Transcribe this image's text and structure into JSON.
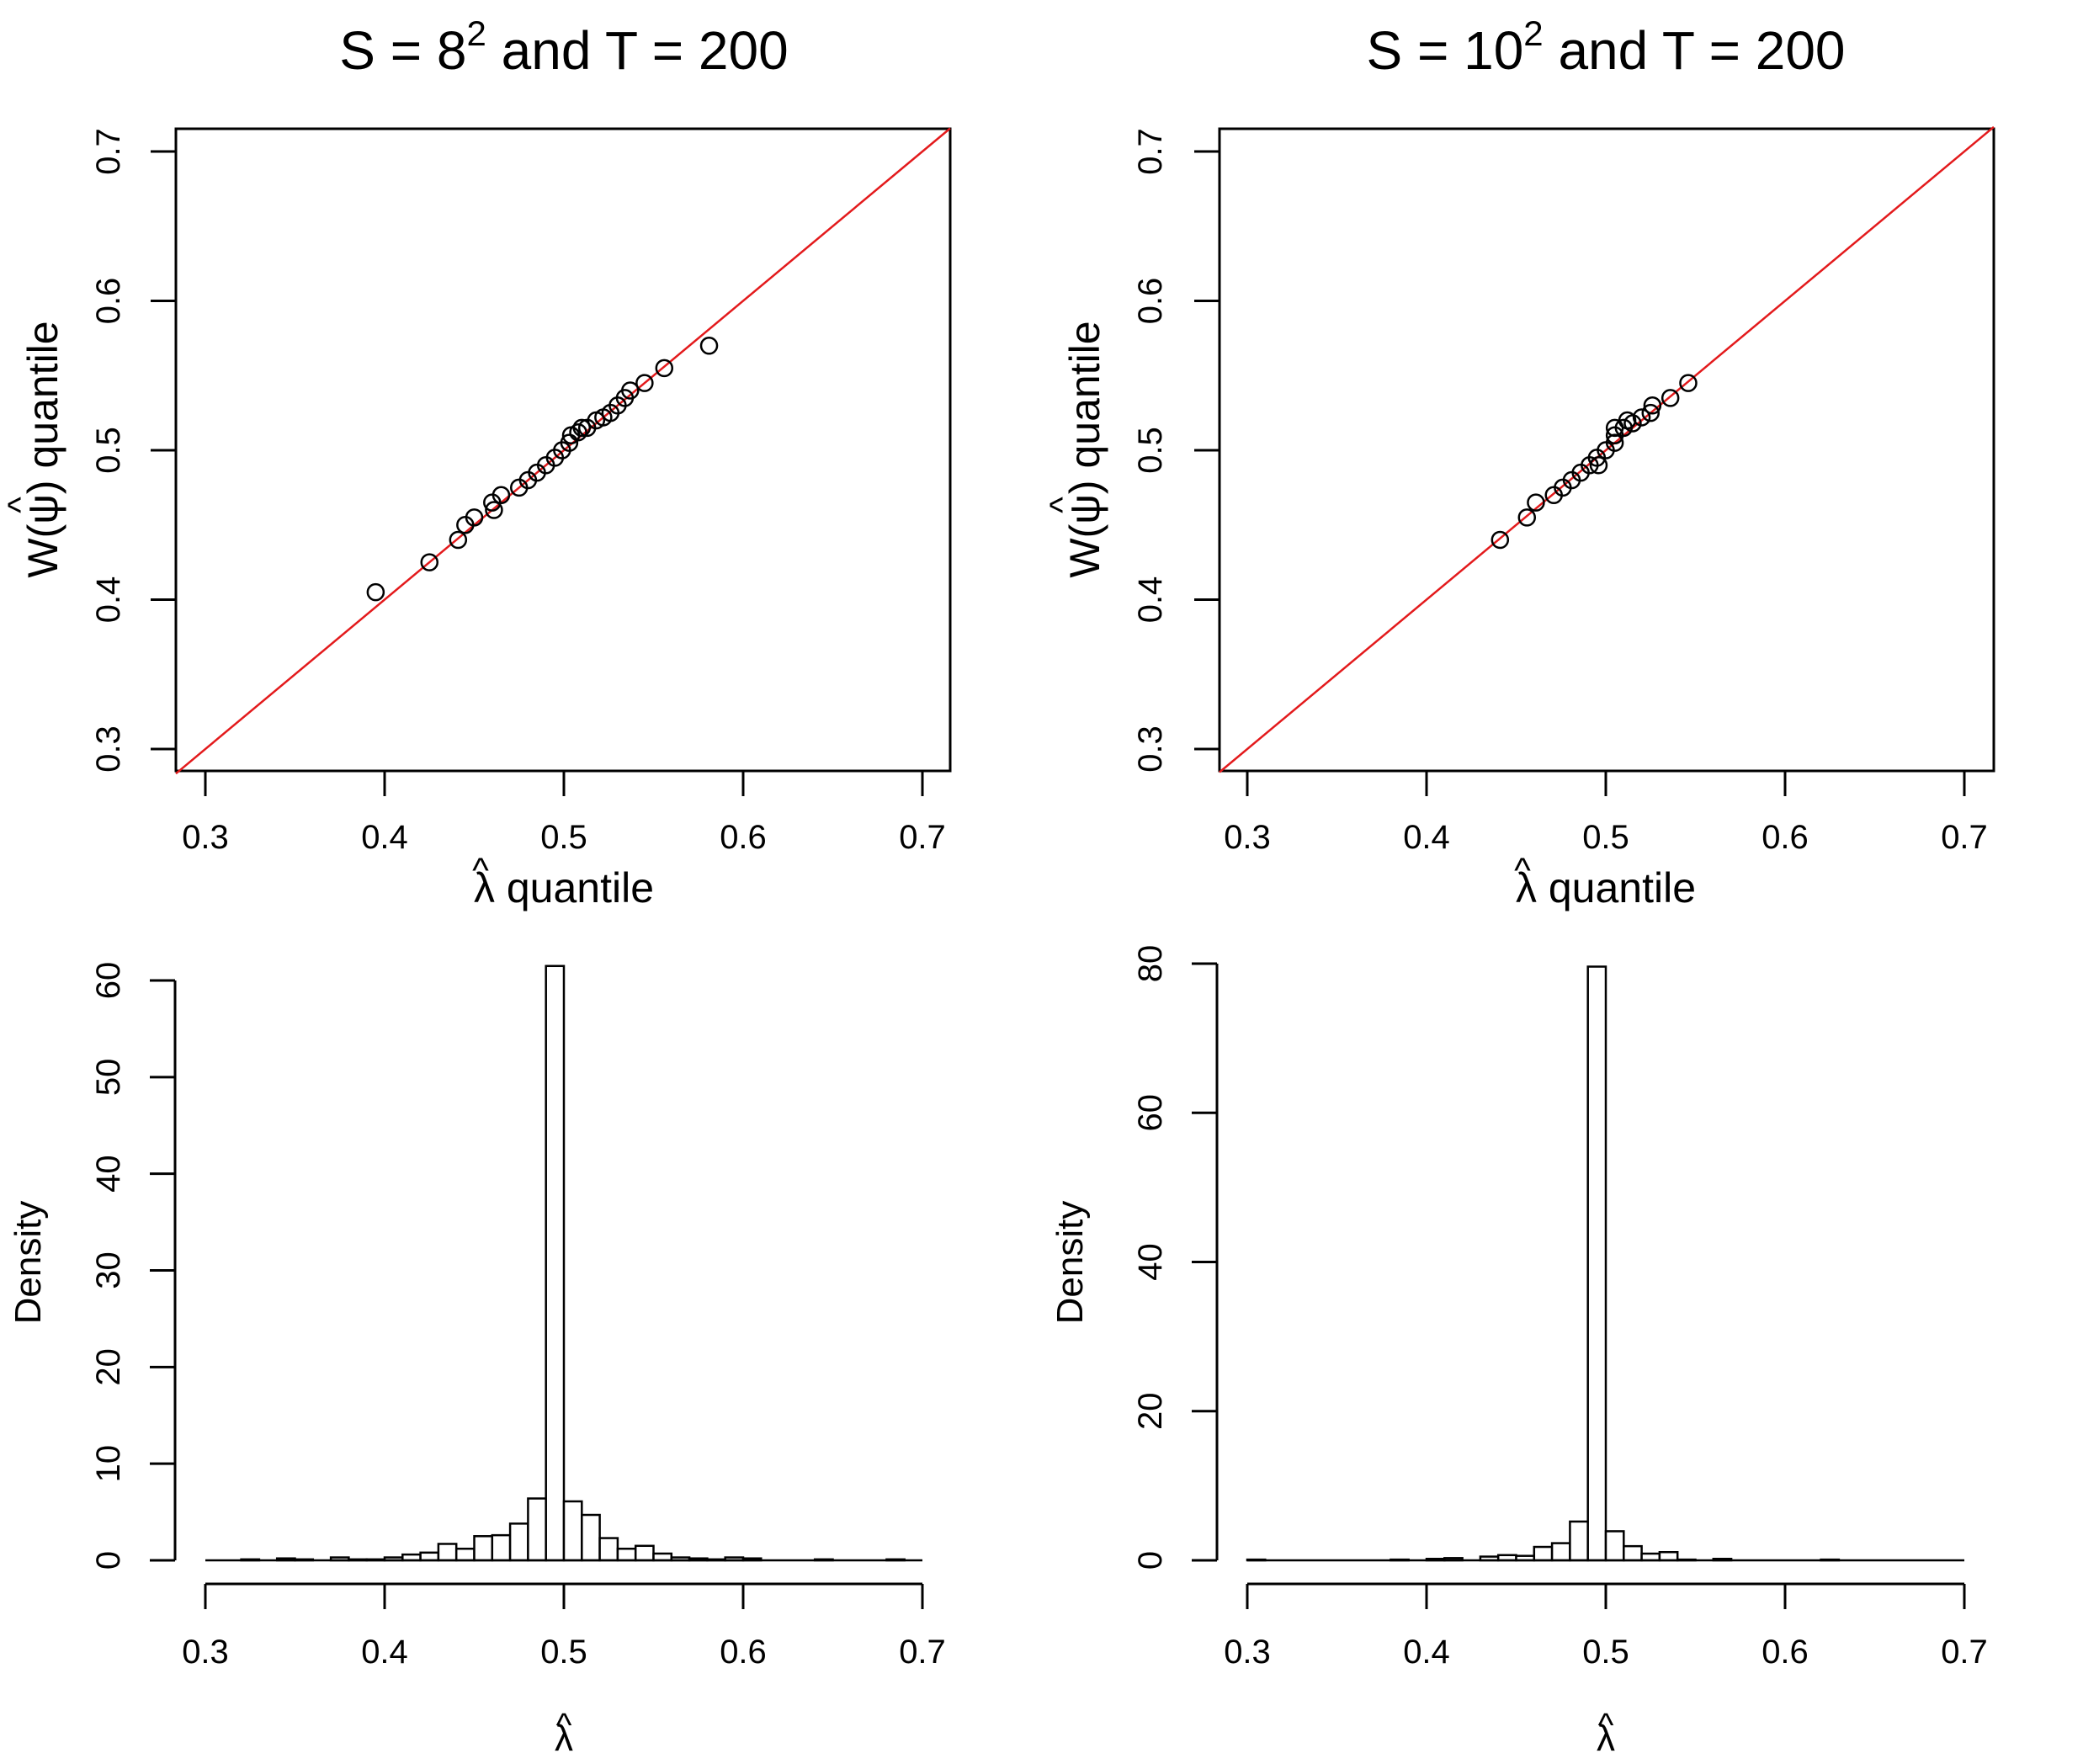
{
  "chart_data": [
    {
      "type": "scatter",
      "panel": "top-left",
      "title": {
        "prefix": "S = 8",
        "superscript": "2",
        "suffix": " and T = 200"
      },
      "xlabel": {
        "hat": "^",
        "symbol": "λ",
        "text": " quantile"
      },
      "ylabel": {
        "prefix": "W(",
        "hat": "^",
        "symbol": "ψ",
        "suffix": ") quantile"
      },
      "xlim": [
        0.3,
        0.7
      ],
      "ylim": [
        0.3,
        0.7
      ],
      "xticks": [
        "0.3",
        "0.4",
        "0.5",
        "0.6",
        "0.7"
      ],
      "yticks": [
        "0.3",
        "0.4",
        "0.5",
        "0.6",
        "0.7"
      ],
      "reference_line": {
        "slope": 1,
        "intercept": 0,
        "color": "#e31a1c"
      },
      "points": [
        [
          0.395,
          0.405
        ],
        [
          0.425,
          0.425
        ],
        [
          0.441,
          0.44
        ],
        [
          0.445,
          0.45
        ],
        [
          0.45,
          0.455
        ],
        [
          0.46,
          0.465
        ],
        [
          0.461,
          0.46
        ],
        [
          0.465,
          0.47
        ],
        [
          0.475,
          0.475
        ],
        [
          0.48,
          0.48
        ],
        [
          0.485,
          0.485
        ],
        [
          0.49,
          0.49
        ],
        [
          0.495,
          0.495
        ],
        [
          0.499,
          0.5
        ],
        [
          0.503,
          0.505
        ],
        [
          0.504,
          0.51
        ],
        [
          0.508,
          0.512
        ],
        [
          0.51,
          0.515
        ],
        [
          0.513,
          0.515
        ],
        [
          0.518,
          0.52
        ],
        [
          0.522,
          0.522
        ],
        [
          0.526,
          0.525
        ],
        [
          0.53,
          0.53
        ],
        [
          0.534,
          0.535
        ],
        [
          0.537,
          0.54
        ],
        [
          0.545,
          0.545
        ],
        [
          0.556,
          0.555
        ],
        [
          0.581,
          0.57
        ]
      ]
    },
    {
      "type": "scatter",
      "panel": "top-right",
      "title": {
        "prefix": "S = 10",
        "superscript": "2",
        "suffix": " and T = 200"
      },
      "xlabel": {
        "hat": "^",
        "symbol": "λ",
        "text": " quantile"
      },
      "ylabel": {
        "prefix": "W(",
        "hat": "^",
        "symbol": "ψ",
        "suffix": ") quantile"
      },
      "xlim": [
        0.3,
        0.7
      ],
      "ylim": [
        0.3,
        0.7
      ],
      "xticks": [
        "0.3",
        "0.4",
        "0.5",
        "0.6",
        "0.7"
      ],
      "yticks": [
        "0.3",
        "0.4",
        "0.5",
        "0.6",
        "0.7"
      ],
      "reference_line": {
        "slope": 1,
        "intercept": 0,
        "color": "#e31a1c"
      },
      "points": [
        [
          0.441,
          0.44
        ],
        [
          0.456,
          0.455
        ],
        [
          0.461,
          0.465
        ],
        [
          0.471,
          0.47
        ],
        [
          0.476,
          0.475
        ],
        [
          0.481,
          0.48
        ],
        [
          0.486,
          0.485
        ],
        [
          0.491,
          0.49
        ],
        [
          0.495,
          0.495
        ],
        [
          0.496,
          0.49
        ],
        [
          0.5,
          0.5
        ],
        [
          0.505,
          0.505
        ],
        [
          0.505,
          0.51
        ],
        [
          0.505,
          0.515
        ],
        [
          0.51,
          0.515
        ],
        [
          0.512,
          0.52
        ],
        [
          0.515,
          0.518
        ],
        [
          0.52,
          0.522
        ],
        [
          0.525,
          0.525
        ],
        [
          0.526,
          0.53
        ],
        [
          0.536,
          0.535
        ],
        [
          0.546,
          0.545
        ]
      ]
    },
    {
      "type": "bar",
      "panel": "bottom-left",
      "xlabel": {
        "hat": "^",
        "symbol": "λ"
      },
      "ylabel": "Density",
      "xlim": [
        0.3,
        0.7
      ],
      "ylim": [
        0,
        60
      ],
      "xticks": [
        "0.3",
        "0.4",
        "0.5",
        "0.6",
        "0.7"
      ],
      "yticks": [
        "0",
        "10",
        "20",
        "30",
        "40",
        "50",
        "60"
      ],
      "bin_width": 0.01,
      "bins_start": [
        0.32,
        0.34,
        0.35,
        0.37,
        0.38,
        0.39,
        0.4,
        0.41,
        0.42,
        0.43,
        0.44,
        0.45,
        0.46,
        0.47,
        0.48,
        0.49,
        0.5,
        0.51,
        0.52,
        0.53,
        0.54,
        0.55,
        0.56,
        0.57,
        0.58,
        0.59,
        0.6,
        0.64,
        0.68
      ],
      "values": [
        0.1,
        0.2,
        0.1,
        0.3,
        0.1,
        0.1,
        0.3,
        0.6,
        0.8,
        1.7,
        1.2,
        2.5,
        2.6,
        3.8,
        6.4,
        61.5,
        6.1,
        4.7,
        2.3,
        1.2,
        1.5,
        0.7,
        0.3,
        0.2,
        0.1,
        0.3,
        0.2,
        0.1,
        0.1
      ]
    },
    {
      "type": "bar",
      "panel": "bottom-right",
      "xlabel": {
        "hat": "^",
        "symbol": "λ"
      },
      "ylabel": "Density",
      "xlim": [
        0.3,
        0.7
      ],
      "ylim": [
        0,
        80
      ],
      "xticks": [
        "0.3",
        "0.4",
        "0.5",
        "0.6",
        "0.7"
      ],
      "yticks": [
        "0",
        "20",
        "40",
        "60",
        "80"
      ],
      "bin_width": 0.01,
      "bins_start": [
        0.3,
        0.38,
        0.4,
        0.41,
        0.43,
        0.44,
        0.45,
        0.46,
        0.47,
        0.48,
        0.49,
        0.5,
        0.51,
        0.52,
        0.53,
        0.54,
        0.56,
        0.62
      ],
      "values": [
        0.1,
        0.1,
        0.2,
        0.3,
        0.5,
        0.7,
        0.6,
        1.8,
        2.3,
        5.2,
        79.6,
        3.9,
        1.9,
        0.9,
        1.1,
        0.1,
        0.2,
        0.1
      ]
    }
  ]
}
